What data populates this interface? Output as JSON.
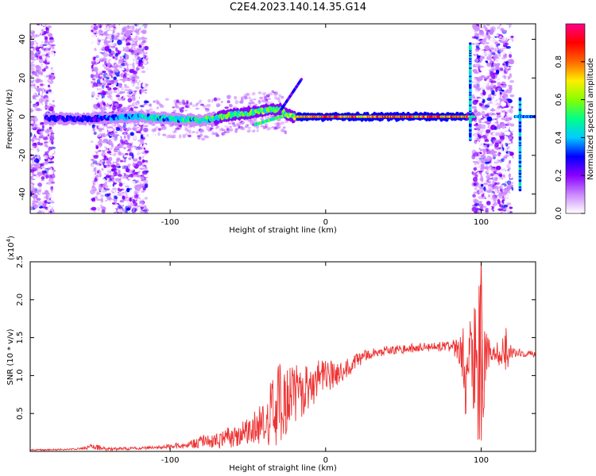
{
  "title": "C2E4.2023.140.14.35.G14",
  "chart_data": [
    {
      "type": "heatmap",
      "xlabel": "Height of straight line (km)",
      "ylabel": "Frequency (Hz)",
      "xlim": [
        -190,
        135
      ],
      "ylim": [
        -50,
        48
      ],
      "x_ticks": [
        -100,
        0,
        100
      ],
      "x_tick_labels": [
        "-100",
        "0",
        "100"
      ],
      "y_ticks": [
        -40,
        -20,
        0,
        20,
        40
      ],
      "y_tick_labels": [
        "-40",
        "-20",
        "0",
        "20",
        "40"
      ],
      "colorbar": {
        "label": "Normalized spectral amplitude",
        "range": [
          0,
          1
        ],
        "ticks": [
          0.0,
          0.2,
          0.4,
          0.6,
          0.8
        ],
        "tick_labels": [
          "0.0",
          "0.2",
          "0.4",
          "0.6",
          "0.8"
        ],
        "colors": [
          "#ffffff",
          "#cc88ff",
          "#8800ff",
          "#0000ff",
          "#00ccff",
          "#00ff88",
          "#88ff00",
          "#ffee00",
          "#ff6600",
          "#ff0000",
          "#ff0088"
        ]
      },
      "ridge": {
        "x": [
          -175,
          -150,
          -120,
          -100,
          -80,
          -60,
          -40,
          -30,
          -25,
          -20,
          -10,
          0,
          20,
          50,
          80,
          90,
          95
        ],
        "freq": [
          -1,
          -1,
          0,
          -1,
          -2,
          1,
          3,
          4,
          1,
          0,
          0,
          0,
          0,
          0,
          0,
          0,
          0
        ],
        "amp": [
          0.35,
          0.35,
          0.5,
          0.55,
          0.55,
          0.6,
          0.65,
          0.65,
          0.6,
          0.85,
          0.9,
          0.95,
          0.95,
          0.95,
          0.95,
          0.9,
          0.7
        ]
      },
      "noise_regions": [
        [
          -190,
          -175
        ],
        [
          -150,
          -115
        ],
        [
          95,
          120
        ]
      ]
    },
    {
      "type": "line",
      "xlabel": "Height of straight line (km)",
      "ylabel": "SNR (10 * v/v)",
      "scale_note": "(x10",
      "scale_exp": "4",
      "scale_close": ")",
      "xlim": [
        -190,
        135
      ],
      "ylim": [
        0,
        2.5
      ],
      "x_ticks": [
        -100,
        0,
        100
      ],
      "x_tick_labels": [
        "-100",
        "0",
        "100"
      ],
      "y_ticks": [
        0.5,
        1.0,
        1.5,
        2.0,
        2.5
      ],
      "y_tick_labels": [
        "0.5",
        "1.0",
        "1.5",
        "2.0",
        "2.5"
      ],
      "line_color": "#ee3333",
      "envelope": {
        "x": [
          -190,
          -160,
          -150,
          -140,
          -110,
          -90,
          -80,
          -70,
          -60,
          -50,
          -40,
          -35,
          -30,
          -25,
          -20,
          -15,
          -10,
          -5,
          0,
          10,
          20,
          30,
          40,
          50,
          60,
          70,
          80,
          85,
          88,
          90,
          93,
          96,
          98,
          100,
          103,
          105,
          110,
          113,
          116,
          120,
          125,
          130,
          135
        ],
        "mean": [
          0.02,
          0.03,
          0.06,
          0.03,
          0.05,
          0.08,
          0.12,
          0.15,
          0.2,
          0.28,
          0.4,
          0.55,
          0.6,
          0.7,
          0.75,
          0.8,
          0.85,
          0.95,
          1.0,
          1.05,
          1.2,
          1.3,
          1.33,
          1.35,
          1.37,
          1.38,
          1.38,
          1.35,
          1.3,
          0.9,
          1.35,
          1.2,
          1.1,
          1.0,
          1.3,
          1.3,
          1.32,
          1.3,
          1.33,
          1.3,
          1.3,
          1.29,
          1.28
        ],
        "spread": [
          0.01,
          0.01,
          0.04,
          0.02,
          0.02,
          0.05,
          0.08,
          0.12,
          0.15,
          0.18,
          0.3,
          0.5,
          0.55,
          0.5,
          0.4,
          0.35,
          0.3,
          0.25,
          0.22,
          0.15,
          0.1,
          0.07,
          0.06,
          0.06,
          0.06,
          0.06,
          0.07,
          0.15,
          0.4,
          0.5,
          0.4,
          0.9,
          1.1,
          1.2,
          0.3,
          0.2,
          0.1,
          0.3,
          0.3,
          0.06,
          0.05,
          0.04,
          0.04
        ]
      }
    }
  ]
}
